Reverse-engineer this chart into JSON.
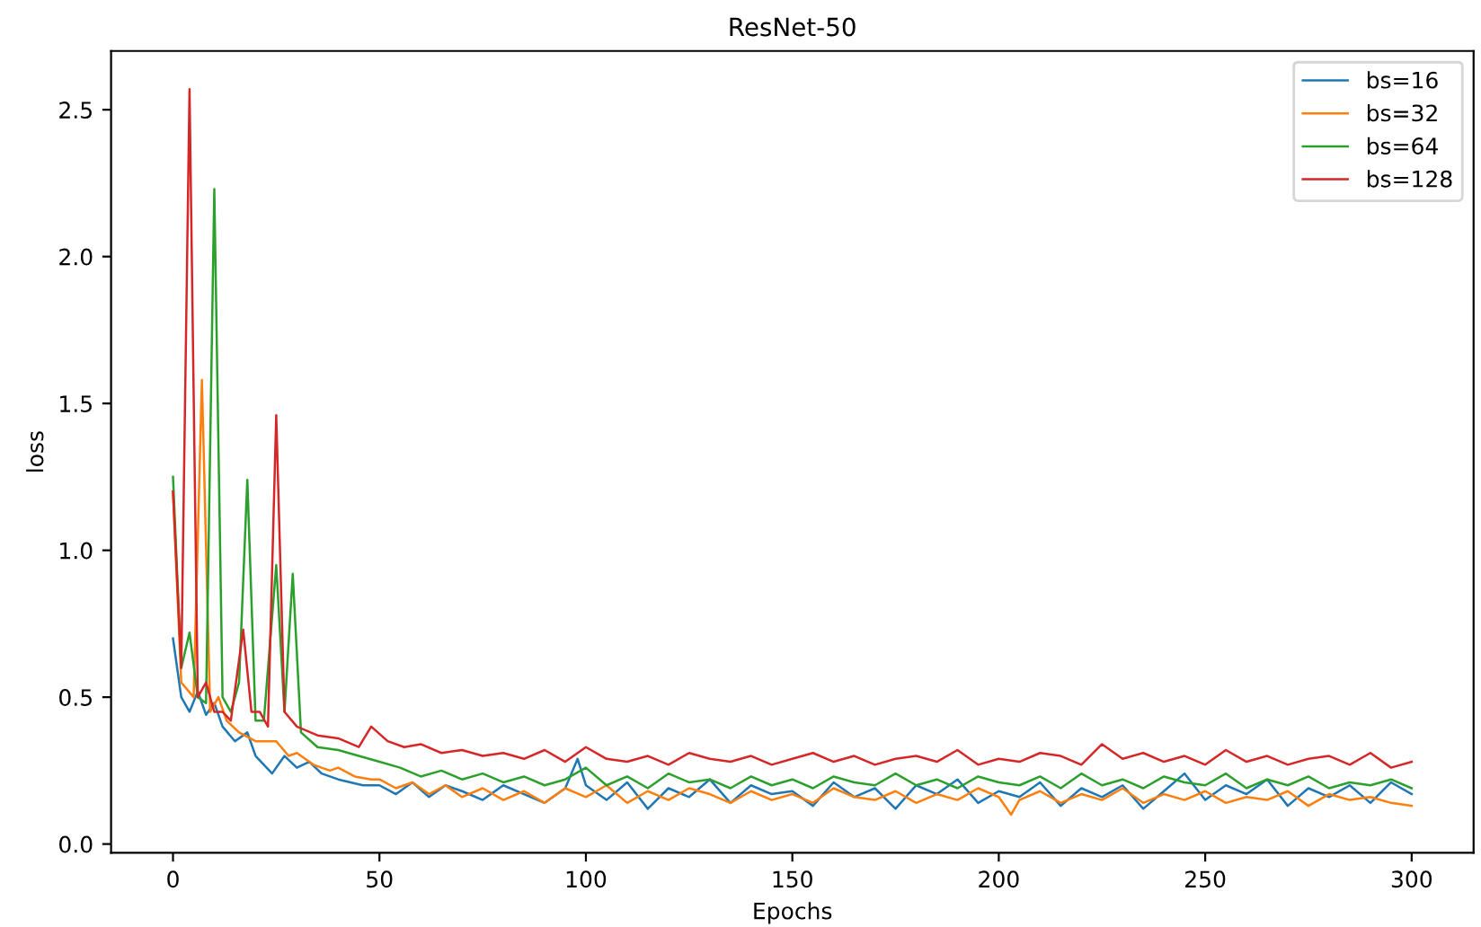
{
  "chart_data": {
    "type": "line",
    "title": "ResNet-50",
    "xlabel": "Epochs",
    "ylabel": "loss",
    "xlim": [
      -15,
      315
    ],
    "ylim": [
      -0.03,
      2.7
    ],
    "xticks": [
      0,
      50,
      100,
      150,
      200,
      250,
      300
    ],
    "yticks": [
      {
        "value": 0,
        "label": "0.0"
      },
      0.5,
      {
        "value": 1,
        "label": "1.0"
      },
      1.5,
      {
        "value": 2,
        "label": "2.0"
      },
      2.5
    ],
    "legend": "top right",
    "grid": false,
    "series": [
      {
        "name": "bs=16",
        "color": "#1f77b4",
        "x": [
          0,
          2,
          4,
          6,
          8,
          10,
          12,
          15,
          18,
          20,
          24,
          27,
          30,
          33,
          36,
          40,
          43,
          46,
          50,
          54,
          58,
          62,
          66,
          70,
          75,
          80,
          85,
          90,
          95,
          98,
          100,
          105,
          110,
          115,
          120,
          125,
          130,
          135,
          140,
          145,
          150,
          155,
          160,
          165,
          170,
          175,
          180,
          185,
          190,
          195,
          200,
          205,
          210,
          215,
          220,
          225,
          230,
          235,
          240,
          245,
          250,
          255,
          260,
          265,
          270,
          275,
          280,
          285,
          290,
          295,
          300
        ],
        "values": [
          0.7,
          0.5,
          0.45,
          0.52,
          0.44,
          0.48,
          0.4,
          0.35,
          0.38,
          0.3,
          0.24,
          0.3,
          0.26,
          0.28,
          0.24,
          0.22,
          0.21,
          0.2,
          0.2,
          0.17,
          0.21,
          0.16,
          0.2,
          0.18,
          0.15,
          0.2,
          0.17,
          0.14,
          0.19,
          0.29,
          0.2,
          0.15,
          0.21,
          0.12,
          0.19,
          0.16,
          0.22,
          0.14,
          0.2,
          0.17,
          0.18,
          0.13,
          0.21,
          0.16,
          0.19,
          0.12,
          0.2,
          0.17,
          0.22,
          0.14,
          0.18,
          0.16,
          0.21,
          0.13,
          0.19,
          0.16,
          0.2,
          0.12,
          0.18,
          0.24,
          0.15,
          0.2,
          0.17,
          0.22,
          0.13,
          0.19,
          0.16,
          0.2,
          0.14,
          0.21,
          0.17
        ]
      },
      {
        "name": "bs=32",
        "color": "#ff7f0e",
        "x": [
          0,
          2,
          5,
          7,
          9,
          11,
          13,
          16,
          20,
          25,
          28,
          30,
          34,
          38,
          40,
          44,
          48,
          50,
          54,
          58,
          62,
          66,
          70,
          75,
          80,
          85,
          90,
          95,
          100,
          105,
          110,
          115,
          120,
          125,
          130,
          135,
          140,
          145,
          150,
          155,
          160,
          165,
          170,
          175,
          180,
          185,
          190,
          195,
          200,
          203,
          205,
          210,
          215,
          220,
          225,
          230,
          235,
          240,
          245,
          250,
          255,
          260,
          265,
          270,
          275,
          280,
          285,
          290,
          295,
          300
        ],
        "values": [
          1.2,
          0.55,
          0.5,
          1.58,
          0.45,
          0.5,
          0.42,
          0.38,
          0.35,
          0.35,
          0.3,
          0.31,
          0.27,
          0.25,
          0.26,
          0.23,
          0.22,
          0.22,
          0.19,
          0.21,
          0.17,
          0.2,
          0.16,
          0.19,
          0.15,
          0.18,
          0.14,
          0.19,
          0.16,
          0.2,
          0.14,
          0.18,
          0.15,
          0.19,
          0.17,
          0.14,
          0.18,
          0.15,
          0.17,
          0.14,
          0.19,
          0.16,
          0.15,
          0.18,
          0.14,
          0.17,
          0.15,
          0.19,
          0.16,
          0.1,
          0.15,
          0.18,
          0.14,
          0.17,
          0.15,
          0.19,
          0.14,
          0.17,
          0.15,
          0.18,
          0.14,
          0.16,
          0.15,
          0.18,
          0.13,
          0.17,
          0.15,
          0.16,
          0.14,
          0.13
        ]
      },
      {
        "name": "bs=64",
        "color": "#2ca02c",
        "x": [
          0,
          2,
          4,
          6,
          8,
          10,
          12,
          14,
          16,
          18,
          20,
          22,
          25,
          27,
          29,
          31,
          35,
          40,
          45,
          50,
          55,
          60,
          65,
          70,
          75,
          80,
          85,
          90,
          95,
          100,
          105,
          110,
          115,
          120,
          125,
          130,
          135,
          140,
          145,
          150,
          155,
          160,
          165,
          170,
          175,
          180,
          185,
          190,
          195,
          200,
          205,
          210,
          215,
          220,
          225,
          230,
          235,
          240,
          245,
          250,
          255,
          260,
          265,
          270,
          275,
          280,
          285,
          290,
          295,
          300
        ],
        "values": [
          1.25,
          0.6,
          0.72,
          0.5,
          0.48,
          2.23,
          0.5,
          0.45,
          0.55,
          1.24,
          0.42,
          0.42,
          0.95,
          0.45,
          0.92,
          0.38,
          0.33,
          0.32,
          0.3,
          0.28,
          0.26,
          0.23,
          0.25,
          0.22,
          0.24,
          0.21,
          0.23,
          0.2,
          0.22,
          0.26,
          0.2,
          0.23,
          0.19,
          0.24,
          0.21,
          0.22,
          0.19,
          0.23,
          0.2,
          0.22,
          0.19,
          0.23,
          0.21,
          0.2,
          0.24,
          0.2,
          0.22,
          0.19,
          0.23,
          0.21,
          0.2,
          0.23,
          0.19,
          0.24,
          0.2,
          0.22,
          0.19,
          0.23,
          0.21,
          0.2,
          0.24,
          0.19,
          0.22,
          0.2,
          0.23,
          0.19,
          0.21,
          0.2,
          0.22,
          0.19
        ]
      },
      {
        "name": "bs=128",
        "color": "#d62728",
        "x": [
          0,
          2,
          4,
          6,
          8,
          10,
          12,
          14,
          17,
          19,
          21,
          23,
          25,
          27,
          30,
          35,
          40,
          45,
          48,
          52,
          56,
          60,
          65,
          70,
          75,
          80,
          85,
          90,
          95,
          100,
          105,
          110,
          115,
          120,
          125,
          130,
          135,
          140,
          145,
          150,
          155,
          160,
          165,
          170,
          175,
          180,
          185,
          190,
          195,
          200,
          205,
          210,
          215,
          220,
          225,
          230,
          235,
          240,
          245,
          250,
          255,
          260,
          265,
          270,
          275,
          280,
          285,
          290,
          295,
          300
        ],
        "values": [
          1.2,
          0.6,
          2.57,
          0.5,
          0.55,
          0.45,
          0.45,
          0.42,
          0.73,
          0.45,
          0.45,
          0.4,
          1.46,
          0.45,
          0.4,
          0.37,
          0.36,
          0.33,
          0.4,
          0.35,
          0.33,
          0.34,
          0.31,
          0.32,
          0.3,
          0.31,
          0.29,
          0.32,
          0.28,
          0.33,
          0.29,
          0.28,
          0.3,
          0.27,
          0.31,
          0.29,
          0.28,
          0.3,
          0.27,
          0.29,
          0.31,
          0.28,
          0.3,
          0.27,
          0.29,
          0.3,
          0.28,
          0.32,
          0.27,
          0.29,
          0.28,
          0.31,
          0.3,
          0.27,
          0.34,
          0.29,
          0.31,
          0.28,
          0.3,
          0.27,
          0.32,
          0.28,
          0.3,
          0.27,
          0.29,
          0.3,
          0.27,
          0.31,
          0.26,
          0.28
        ]
      }
    ]
  }
}
